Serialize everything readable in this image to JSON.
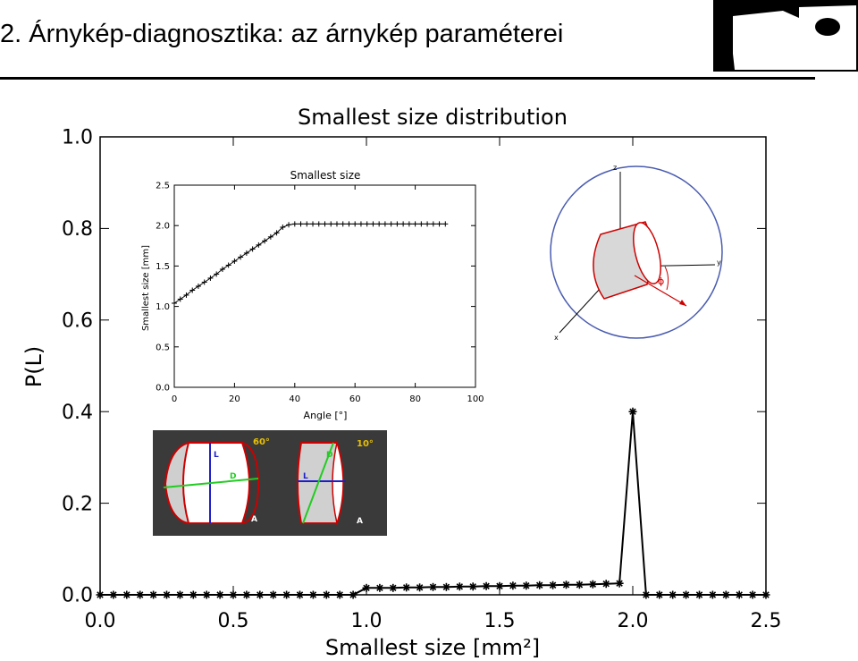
{
  "slide": {
    "title": "2. Árnykép-diagnosztika: az árnykép paraméterei"
  },
  "colors": {
    "photo_background": "#3a3a3a",
    "shape_outline": "#cc0000",
    "measure_L": "#1e1ec8",
    "measure_D": "#22cc22",
    "angle_label": "#e8c000",
    "sphere": "#4a5cb0"
  },
  "photos": [
    {
      "angle_label": "60°",
      "labels": {
        "L": "L",
        "D": "D",
        "A": "A"
      }
    },
    {
      "angle_label": "10°",
      "labels": {
        "L": "L",
        "D": "D",
        "A": "A"
      }
    }
  ],
  "diagram": {
    "axes": {
      "x": "x",
      "y": "y",
      "z": "z"
    },
    "angle_symbol": "ϕ"
  },
  "chart_data": [
    {
      "type": "line",
      "title": "Smallest size distribution",
      "xlabel": "Smallest size [mm²]",
      "ylabel": "P(L)",
      "xlim": [
        0.0,
        2.5
      ],
      "ylim": [
        0.0,
        1.0
      ],
      "xticks": [
        "0.0",
        "0.5",
        "1.0",
        "1.5",
        "2.0",
        "2.5"
      ],
      "yticks": [
        "0.0",
        "0.2",
        "0.4",
        "0.6",
        "0.8",
        "1.0"
      ],
      "marker": "asterisk",
      "x": [
        0.0,
        0.05,
        0.1,
        0.15,
        0.2,
        0.25,
        0.3,
        0.35,
        0.4,
        0.45,
        0.5,
        0.55,
        0.6,
        0.65,
        0.7,
        0.75,
        0.8,
        0.85,
        0.9,
        0.95,
        1.0,
        1.05,
        1.1,
        1.15,
        1.2,
        1.25,
        1.3,
        1.35,
        1.4,
        1.45,
        1.5,
        1.55,
        1.6,
        1.65,
        1.7,
        1.75,
        1.8,
        1.85,
        1.9,
        1.95,
        2.0,
        2.05,
        2.1,
        2.15,
        2.2,
        2.25,
        2.3,
        2.35,
        2.4,
        2.45,
        2.5
      ],
      "y": [
        0.0,
        0.0,
        0.0,
        0.0,
        0.0,
        0.0,
        0.0,
        0.0,
        0.0,
        0.0,
        0.0,
        0.0,
        0.0,
        0.0,
        0.0,
        0.0,
        0.0,
        0.0,
        0.0,
        0.0,
        0.015,
        0.015,
        0.015,
        0.016,
        0.016,
        0.017,
        0.017,
        0.018,
        0.018,
        0.019,
        0.019,
        0.02,
        0.02,
        0.021,
        0.021,
        0.022,
        0.022,
        0.023,
        0.024,
        0.025,
        0.4,
        0.0,
        0.0,
        0.0,
        0.0,
        0.0,
        0.0,
        0.0,
        0.0,
        0.0,
        0.0
      ],
      "grid": false
    },
    {
      "type": "line",
      "title": "Smallest size",
      "xlabel": "Angle [°]",
      "ylabel": "Smallest size [mm]",
      "xlim": [
        0,
        100
      ],
      "ylim": [
        0.0,
        2.5
      ],
      "xticks": [
        "0",
        "20",
        "40",
        "60",
        "80",
        "100"
      ],
      "yticks": [
        "0.0",
        "0.5",
        "1.0",
        "1.5",
        "2.0",
        "2.5"
      ],
      "marker": "plus",
      "x": [
        0,
        2,
        4,
        6,
        8,
        10,
        12,
        14,
        16,
        18,
        20,
        22,
        24,
        26,
        28,
        30,
        32,
        34,
        36,
        38,
        40,
        42,
        44,
        46,
        48,
        50,
        52,
        54,
        56,
        58,
        60,
        62,
        64,
        66,
        68,
        70,
        72,
        74,
        76,
        78,
        80,
        82,
        84,
        86,
        88,
        90
      ],
      "y": [
        1.04,
        1.09,
        1.14,
        1.2,
        1.25,
        1.3,
        1.35,
        1.4,
        1.46,
        1.51,
        1.56,
        1.61,
        1.66,
        1.71,
        1.76,
        1.81,
        1.86,
        1.91,
        1.98,
        2.01,
        2.02,
        2.02,
        2.02,
        2.02,
        2.02,
        2.02,
        2.02,
        2.02,
        2.02,
        2.02,
        2.02,
        2.02,
        2.02,
        2.02,
        2.02,
        2.02,
        2.02,
        2.02,
        2.02,
        2.02,
        2.02,
        2.02,
        2.02,
        2.02,
        2.02,
        2.02
      ],
      "grid": false
    }
  ]
}
